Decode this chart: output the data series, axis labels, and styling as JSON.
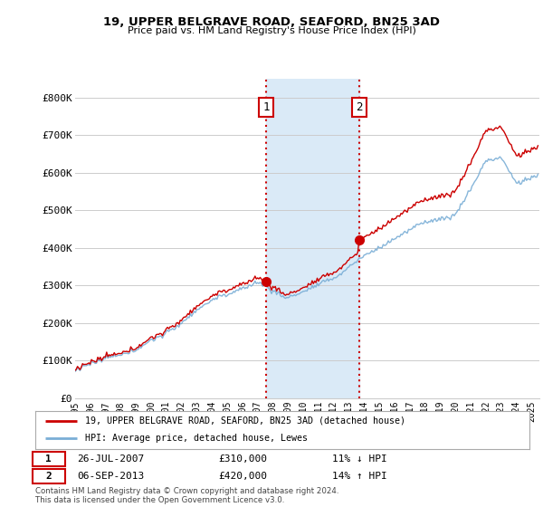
{
  "title": "19, UPPER BELGRAVE ROAD, SEAFORD, BN25 3AD",
  "subtitle": "Price paid vs. HM Land Registry's House Price Index (HPI)",
  "legend_line1": "19, UPPER BELGRAVE ROAD, SEAFORD, BN25 3AD (detached house)",
  "legend_line2": "HPI: Average price, detached house, Lewes",
  "transaction1_date": "26-JUL-2007",
  "transaction1_price": "£310,000",
  "transaction1_hpi": "11% ↓ HPI",
  "transaction1_year": 2007.57,
  "transaction1_value": 310000,
  "transaction2_date": "06-SEP-2013",
  "transaction2_price": "£420,000",
  "transaction2_hpi": "14% ↑ HPI",
  "transaction2_year": 2013.68,
  "transaction2_value": 420000,
  "house_color": "#cc0000",
  "hpi_color": "#7aaed6",
  "shaded_color": "#daeaf7",
  "background_color": "#ffffff",
  "grid_color": "#cccccc",
  "footnote": "Contains HM Land Registry data © Crown copyright and database right 2024.\nThis data is licensed under the Open Government Licence v3.0.",
  "ylim": [
    0,
    850000
  ],
  "yticks": [
    0,
    100000,
    200000,
    300000,
    400000,
    500000,
    600000,
    700000,
    800000
  ],
  "ytick_labels": [
    "£0",
    "£100K",
    "£200K",
    "£300K",
    "£400K",
    "£500K",
    "£600K",
    "£700K",
    "£800K"
  ],
  "xmin": 1995,
  "xmax": 2025.5
}
